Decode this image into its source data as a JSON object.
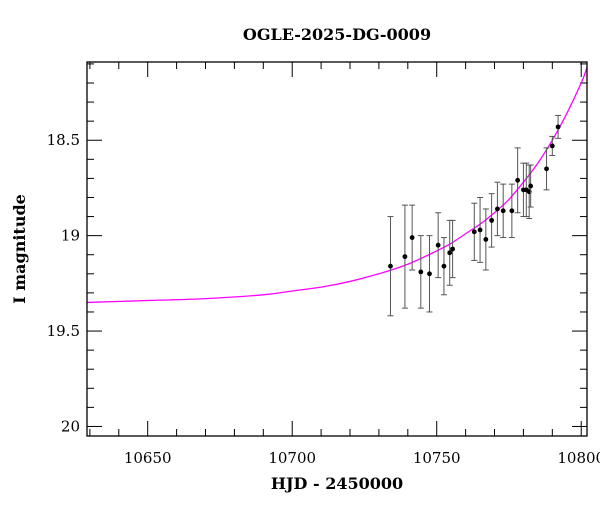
{
  "chart_data": {
    "type": "scatter",
    "title": "OGLE-2025-DG-0009",
    "xlabel": "HJD - 2450000",
    "ylabel": "I magnitude",
    "xlim": [
      10629,
      10802
    ],
    "ylim": [
      20.05,
      18.09
    ],
    "y_inverted": true,
    "x_ticks": [
      10650,
      10700,
      10750,
      10800
    ],
    "x_tick_labels": [
      "10650",
      "10700",
      "10750",
      "10800"
    ],
    "y_ticks": [
      18.5,
      19,
      19.5,
      20
    ],
    "y_tick_labels": [
      "18.5",
      "19",
      "19.5",
      "20"
    ],
    "grid": false,
    "legend": "none",
    "colors": {
      "points": "#000000",
      "model": "#ff00ff",
      "frame": "#000000"
    },
    "series": [
      {
        "type": "scatter_errorbar",
        "points": [
          {
            "x": 10734.0,
            "y": 19.16,
            "err": 0.26
          },
          {
            "x": 10739.0,
            "y": 19.11,
            "err": 0.27
          },
          {
            "x": 10741.5,
            "y": 19.01,
            "err": 0.17
          },
          {
            "x": 10744.5,
            "y": 19.19,
            "err": 0.19
          },
          {
            "x": 10747.5,
            "y": 19.2,
            "err": 0.2
          },
          {
            "x": 10750.5,
            "y": 19.05,
            "err": 0.17
          },
          {
            "x": 10752.5,
            "y": 19.16,
            "err": 0.15
          },
          {
            "x": 10754.5,
            "y": 19.09,
            "err": 0.17
          },
          {
            "x": 10755.5,
            "y": 19.07,
            "err": 0.15
          },
          {
            "x": 10763.0,
            "y": 18.98,
            "err": 0.15
          },
          {
            "x": 10765.0,
            "y": 18.97,
            "err": 0.17
          },
          {
            "x": 10767.0,
            "y": 19.02,
            "err": 0.16
          },
          {
            "x": 10769.0,
            "y": 18.92,
            "err": 0.14
          },
          {
            "x": 10771.0,
            "y": 18.86,
            "err": 0.14
          },
          {
            "x": 10773.0,
            "y": 18.87,
            "err": 0.14
          },
          {
            "x": 10776.0,
            "y": 18.87,
            "err": 0.14
          },
          {
            "x": 10778.0,
            "y": 18.71,
            "err": 0.17
          },
          {
            "x": 10780.0,
            "y": 18.76,
            "err": 0.14
          },
          {
            "x": 10781.0,
            "y": 18.76,
            "err": 0.14
          },
          {
            "x": 10782.0,
            "y": 18.77,
            "err": 0.14
          },
          {
            "x": 10782.5,
            "y": 18.74,
            "err": 0.11
          },
          {
            "x": 10788.0,
            "y": 18.65,
            "err": 0.11
          },
          {
            "x": 10790.0,
            "y": 18.53,
            "err": 0.05
          },
          {
            "x": 10792.0,
            "y": 18.43,
            "err": 0.06
          }
        ]
      },
      {
        "type": "line",
        "points": [
          {
            "x": 10629,
            "y": 19.35
          },
          {
            "x": 10650,
            "y": 19.34
          },
          {
            "x": 10670,
            "y": 19.33
          },
          {
            "x": 10690,
            "y": 19.31
          },
          {
            "x": 10700,
            "y": 19.29
          },
          {
            "x": 10710,
            "y": 19.27
          },
          {
            "x": 10720,
            "y": 19.24
          },
          {
            "x": 10730,
            "y": 19.2
          },
          {
            "x": 10740,
            "y": 19.15
          },
          {
            "x": 10750,
            "y": 19.08
          },
          {
            "x": 10755,
            "y": 19.04
          },
          {
            "x": 10760,
            "y": 18.99
          },
          {
            "x": 10765,
            "y": 18.94
          },
          {
            "x": 10770,
            "y": 18.88
          },
          {
            "x": 10775,
            "y": 18.81
          },
          {
            "x": 10780,
            "y": 18.72
          },
          {
            "x": 10785,
            "y": 18.62
          },
          {
            "x": 10790,
            "y": 18.5
          },
          {
            "x": 10795,
            "y": 18.36
          },
          {
            "x": 10800,
            "y": 18.2
          },
          {
            "x": 10802,
            "y": 18.12
          }
        ]
      }
    ]
  }
}
